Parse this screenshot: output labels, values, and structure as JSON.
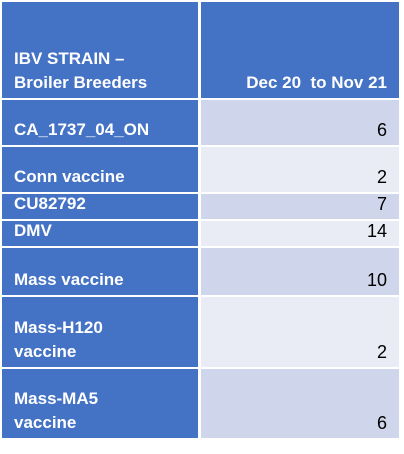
{
  "header": {
    "columns": [
      "IBV STRAIN – Broiler Breeders",
      "Dec 20  to Nov 21"
    ]
  },
  "table": {
    "rows": [
      [
        "CA_1737_04_ON",
        6
      ],
      [
        "Conn vaccine",
        2
      ],
      [
        "CU82792",
        7
      ],
      [
        "DMV",
        14
      ],
      [
        "Mass vaccine",
        10
      ],
      [
        "Mass-H120 vaccine",
        2
      ],
      [
        "Mass-MA5 vaccine",
        6
      ]
    ]
  }
}
